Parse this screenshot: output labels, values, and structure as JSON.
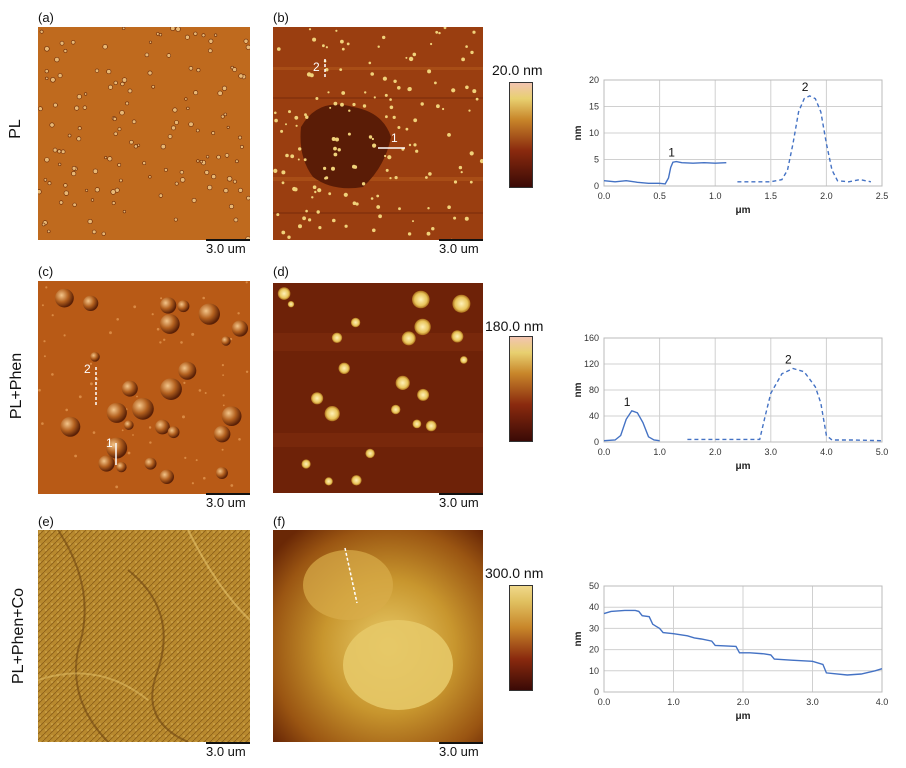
{
  "rows": [
    {
      "row_label": "PL",
      "left_label": "(a)",
      "right_label": "(b)",
      "scale_left": "3.0 um",
      "scale_right": "3.0 um",
      "colorbar_max": "20.0 nm",
      "line_markers": [
        "1",
        "2"
      ]
    },
    {
      "row_label": "PL+Phen",
      "left_label": "(c)",
      "right_label": "(d)",
      "scale_left": "3.0 um",
      "scale_right": "3.0 um",
      "colorbar_max": "180.0 nm",
      "line_markers": [
        "1",
        "2"
      ]
    },
    {
      "row_label": "PL+Phen+Co",
      "left_label": "(e)",
      "right_label": "(f)",
      "scale_left": "3.0 um",
      "scale_right": "3.0 um",
      "colorbar_max": "300.0 nm",
      "line_markers": []
    }
  ],
  "colors": {
    "profile_line": "#4472c4",
    "grid": "#d0d0d0",
    "afm_dark": "#4a0f08",
    "afm_mid": "#a8470e",
    "afm_light": "#e8c86a"
  },
  "chart_data": [
    {
      "type": "line",
      "xlabel": "μm",
      "ylabel": "nm",
      "xlim": [
        0,
        2.5
      ],
      "ylim": [
        0,
        20
      ],
      "xticks": [
        "0.0",
        "0.5",
        "1.0",
        "1.5",
        "2.0",
        "2.5"
      ],
      "yticks": [
        "0",
        "5",
        "10",
        "15",
        "20"
      ],
      "series": [
        {
          "name": "1",
          "style": "solid",
          "x": [
            0.0,
            0.1,
            0.2,
            0.3,
            0.4,
            0.5,
            0.55,
            0.58,
            0.6,
            0.62,
            0.65,
            0.7,
            0.8,
            0.9,
            1.0,
            1.1
          ],
          "y": [
            1.0,
            0.8,
            1.0,
            0.7,
            0.5,
            0.5,
            0.4,
            1.5,
            3.5,
            4.5,
            4.6,
            4.4,
            4.3,
            4.4,
            4.3,
            4.4
          ]
        },
        {
          "name": "2",
          "style": "dashed",
          "x": [
            1.2,
            1.3,
            1.4,
            1.5,
            1.6,
            1.65,
            1.7,
            1.75,
            1.8,
            1.85,
            1.9,
            1.95,
            2.0,
            2.05,
            2.1,
            2.2,
            2.3,
            2.4
          ],
          "y": [
            0.8,
            0.8,
            0.8,
            0.8,
            1.2,
            3.0,
            8.0,
            14.0,
            16.5,
            17.0,
            16.5,
            14.0,
            8.0,
            3.0,
            1.0,
            0.8,
            1.2,
            0.8
          ]
        }
      ]
    },
    {
      "type": "line",
      "xlabel": "μm",
      "ylabel": "nm",
      "xlim": [
        0,
        5
      ],
      "ylim": [
        0,
        160
      ],
      "xticks": [
        "0.0",
        "1.0",
        "2.0",
        "3.0",
        "4.0",
        "5.0"
      ],
      "yticks": [
        "0",
        "40",
        "80",
        "120",
        "160"
      ],
      "series": [
        {
          "name": "1",
          "style": "solid",
          "x": [
            0.0,
            0.2,
            0.3,
            0.4,
            0.5,
            0.6,
            0.7,
            0.8,
            0.9,
            1.0
          ],
          "y": [
            2,
            3,
            10,
            35,
            48,
            45,
            30,
            8,
            3,
            2
          ]
        },
        {
          "name": "2",
          "style": "dashed",
          "x": [
            1.5,
            2.0,
            2.5,
            2.8,
            2.9,
            3.0,
            3.2,
            3.4,
            3.6,
            3.8,
            3.9,
            4.0,
            4.1,
            4.5,
            5.0
          ],
          "y": [
            4,
            4,
            4,
            4,
            40,
            75,
            105,
            113,
            108,
            85,
            60,
            10,
            3,
            3,
            2
          ]
        }
      ]
    },
    {
      "type": "line",
      "xlabel": "μm",
      "ylabel": "nm",
      "xlim": [
        0,
        4
      ],
      "ylim": [
        0,
        50
      ],
      "xticks": [
        "0.0",
        "1.0",
        "2.0",
        "3.0",
        "4.0"
      ],
      "yticks": [
        "0",
        "10",
        "20",
        "30",
        "40",
        "50"
      ],
      "series": [
        {
          "name": "",
          "style": "solid",
          "x": [
            0.0,
            0.1,
            0.3,
            0.45,
            0.5,
            0.55,
            0.65,
            0.7,
            0.75,
            0.8,
            0.85,
            1.0,
            1.2,
            1.3,
            1.4,
            1.55,
            1.6,
            1.9,
            1.95,
            2.1,
            2.3,
            2.4,
            2.45,
            2.7,
            3.0,
            3.15,
            3.2,
            3.5,
            3.7,
            3.9,
            4.0
          ],
          "y": [
            37,
            38,
            38.5,
            38.5,
            38,
            36,
            35.5,
            32,
            31,
            30,
            28,
            27.5,
            26.5,
            25.5,
            25,
            24,
            22,
            21.5,
            18.5,
            18.5,
            18,
            17.5,
            15.5,
            15,
            14.5,
            13,
            9,
            8,
            8.5,
            10,
            11
          ]
        }
      ]
    }
  ]
}
